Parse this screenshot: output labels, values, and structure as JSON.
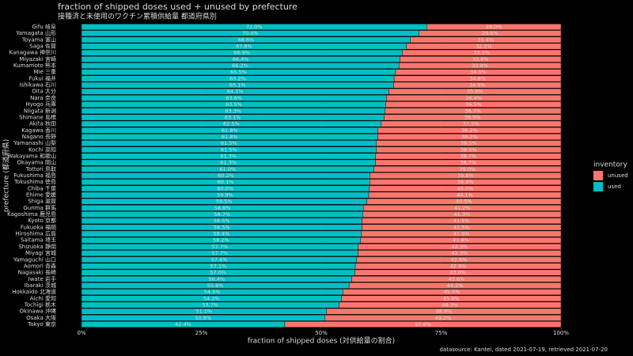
{
  "chart_data": {
    "type": "stacked-bar-horizontal",
    "title": "fraction of shipped doses used + unused by prefecture",
    "subtitle": "接種済と未使用のワクチン累積供給量 都道府県別",
    "x_label": "fraction of shipped doses (対供給量の割合)",
    "y_label": "prefecture (都道府県)",
    "caption": "datasource: Kantei, dated 2021-07-19, retrieved 2021-07-20",
    "legend_title": "inventory",
    "legend_position": "right",
    "categories": [
      "Gifu 岐阜",
      "Yamagata 山形",
      "Toyama 富山",
      "Saga 佐賀",
      "Kanagawa 神奈川",
      "Miyazaki 宮崎",
      "Kumamoto 熊本",
      "Mie 三重",
      "Fukui 福井",
      "Ishikawa 石川",
      "Oita 大分",
      "Nara 奈良",
      "Hyogo 兵庫",
      "Niigata 新潟",
      "Shimane 島根",
      "Akita 秋田",
      "Kagawa 香川",
      "Nagano 長野",
      "Yamanashi 山梨",
      "Kochi 高知",
      "Wakayama 和歌山",
      "Okayama 岡山",
      "Tottori 鳥取",
      "Fukushima 福島",
      "Tokushima 徳島",
      "Chiba 千葉",
      "Ehime 愛媛",
      "Shiga 滋賀",
      "Gunma 群馬",
      "Kagoshima 鹿児島",
      "Kyoto 京都",
      "Fukuoka 福岡",
      "Hiroshima 広島",
      "Saitama 埼玉",
      "Shizuoka 静岡",
      "Miyagi 宮城",
      "Yamaguchi 山口",
      "Aomori 青森",
      "Nagasaki 長崎",
      "Iwate 岩手",
      "Ibaraki 茨城",
      "Hokkaido 北海道",
      "Aichi 愛知",
      "Tochigi 栃木",
      "Okinawa 沖縄",
      "Osaka 大阪",
      "Tokyo 東京"
    ],
    "series": [
      {
        "name": "unused",
        "color": "#F8766D",
        "values": [
          28.0,
          29.6,
          31.4,
          32.2,
          33.1,
          33.6,
          33.8,
          34.5,
          34.8,
          34.9,
          35.9,
          36.4,
          36.5,
          36.7,
          36.9,
          37.5,
          38.2,
          38.2,
          38.5,
          38.5,
          38.7,
          38.7,
          39.0,
          39.8,
          39.9,
          40.0,
          40.1,
          40.5,
          41.2,
          41.3,
          41.5,
          41.5,
          41.6,
          41.8,
          42.3,
          42.3,
          42.6,
          42.9,
          43.0,
          43.6,
          44.2,
          45.5,
          45.8,
          46.3,
          48.9,
          49.2,
          57.6
        ],
        "value_labels": [
          "28.0%",
          "29.6%",
          "31.4%",
          "32.2%",
          "33.1%",
          "33.6%",
          "33.8%",
          "34.5%",
          "34.8%",
          "34.9%",
          "35.9%",
          "36.4%",
          "36.5%",
          "36.7%",
          "36.9%",
          "37.5%",
          "38.2%",
          "38.2%",
          "38.5%",
          "38.5%",
          "38.7%",
          "38.7%",
          "39.0%",
          "39.8%",
          "39.9%",
          "40.0%",
          "40.1%",
          "40.5%",
          "41.2%",
          "41.3%",
          "41.5%",
          "41.5%",
          "41.6%",
          "41.8%",
          "42.3%",
          "42.3%",
          "42.6%",
          "42.9%",
          "43.0%",
          "43.6%",
          "44.2%",
          "45.5%",
          "45.8%",
          "46.3%",
          "48.9%",
          "49.2%",
          "57.6%"
        ]
      },
      {
        "name": "used",
        "color": "#00BFC4",
        "values": [
          72.0,
          70.4,
          68.6,
          67.8,
          66.9,
          66.4,
          66.2,
          65.5,
          65.2,
          65.1,
          64.1,
          63.6,
          63.5,
          63.3,
          63.1,
          62.5,
          61.8,
          61.8,
          61.5,
          61.5,
          61.3,
          61.3,
          61.0,
          60.2,
          60.1,
          60.0,
          59.9,
          59.5,
          58.8,
          58.7,
          58.5,
          58.5,
          58.4,
          58.2,
          57.7,
          57.7,
          57.4,
          57.1,
          57.0,
          56.4,
          55.8,
          54.5,
          54.2,
          53.7,
          51.1,
          50.8,
          42.4
        ],
        "value_labels": [
          "72.0%",
          "70.4%",
          "68.6%",
          "67.8%",
          "66.9%",
          "66.4%",
          "66.2%",
          "65.5%",
          "65.2%",
          "65.1%",
          "64.1%",
          "63.6%",
          "63.5%",
          "63.3%",
          "63.1%",
          "62.5%",
          "61.8%",
          "61.8%",
          "61.5%",
          "61.5%",
          "61.3%",
          "61.3%",
          "61.0%",
          "60.2%",
          "60.1%",
          "60.0%",
          "59.9%",
          "59.5%",
          "58.8%",
          "58.7%",
          "58.5%",
          "58.5%",
          "58.4%",
          "58.2%",
          "57.7%",
          "57.7%",
          "57.4%",
          "57.1%",
          "57.0%",
          "56.4%",
          "55.8%",
          "54.5%",
          "54.2%",
          "53.7%",
          "51.1%",
          "50.8%",
          "42.4%"
        ]
      }
    ],
    "xlim": [
      0,
      100
    ],
    "xticks": [
      {
        "value": 0,
        "label": "0%"
      },
      {
        "value": 25,
        "label": "25%"
      },
      {
        "value": 50,
        "label": "50%"
      },
      {
        "value": 75,
        "label": "75%"
      },
      {
        "value": 100,
        "label": "100%"
      }
    ],
    "grid": true
  }
}
